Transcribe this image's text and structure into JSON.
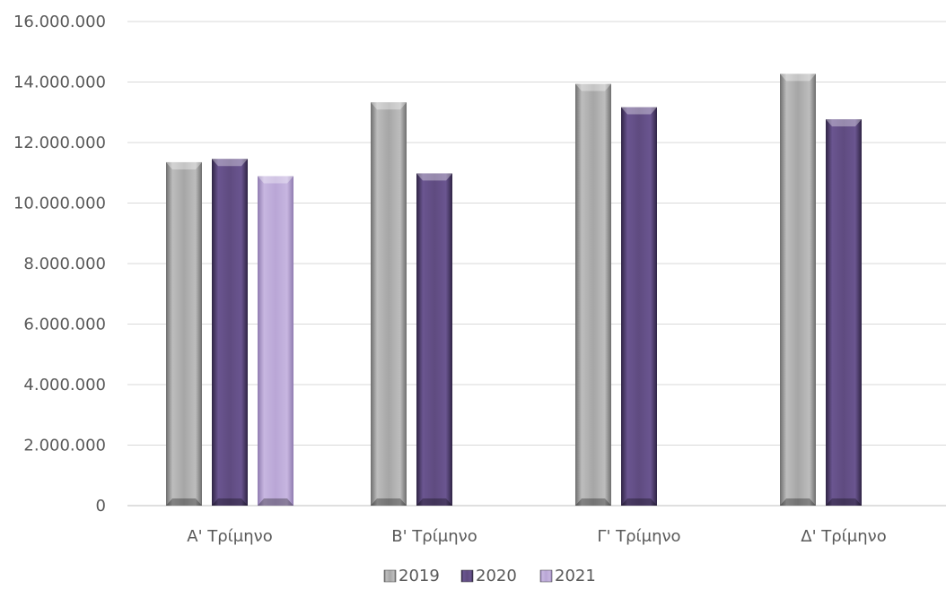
{
  "chart_data": {
    "type": "bar",
    "categories": [
      "Α' Τρίμηνο",
      "Β' Τρίμηνο",
      "Γ' Τρίμηνο",
      "Δ' Τρίμηνο"
    ],
    "series": [
      {
        "name": "2019",
        "values": [
          11350000,
          13330000,
          13940000,
          14270000
        ],
        "color": "#A6A6A6"
      },
      {
        "name": "2020",
        "values": [
          11460000,
          10980000,
          13170000,
          12770000
        ],
        "color": "#5F4B80"
      },
      {
        "name": "2021",
        "values": [
          10890000,
          null,
          null,
          null
        ],
        "color": "#B9A6D6"
      }
    ],
    "ylim": [
      0,
      16000000
    ],
    "yticks": [
      "0",
      "2.000.000",
      "4.000.000",
      "6.000.000",
      "8.000.000",
      "10.000.000",
      "12.000.000",
      "14.000.000",
      "16.000.000"
    ],
    "grid": true,
    "legend_position": "bottom"
  }
}
